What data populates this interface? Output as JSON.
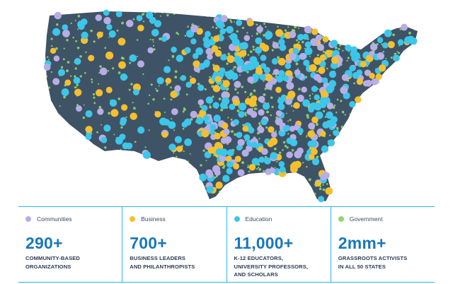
{
  "map": {
    "colors": {
      "land": "#3f5366",
      "communities": "#b7aee6",
      "business": "#f5c02e",
      "education": "#3cc6ea",
      "government": "#8fd86a"
    }
  },
  "legend": {
    "categories": [
      {
        "name": "Communities",
        "number": "290+",
        "desc_lines": [
          "COMMUNITY-BASED",
          "ORGANIZATIONS"
        ],
        "color": "#b7aee6",
        "icon": "circle-dot"
      },
      {
        "name": "Business",
        "number": "700+",
        "desc_lines": [
          "BUSINESS LEADERS",
          "AND PHILANTHROPISTS"
        ],
        "color": "#f5c02e",
        "icon": "circle-dot"
      },
      {
        "name": "Education",
        "number": "11,000+",
        "desc_lines": [
          "K-12 EDUCATORS,",
          "UNIVERSITY PROFESSORS,",
          "AND SCHOLARS"
        ],
        "color": "#3cc6ea",
        "icon": "circle-dot"
      },
      {
        "name": "Government",
        "number": "2mm+",
        "desc_lines": [
          "GRASSROOTS ACTIVISTS",
          "IN ALL 50 STATES"
        ],
        "color": "#8fd86a",
        "icon": "circle-dot"
      }
    ]
  }
}
